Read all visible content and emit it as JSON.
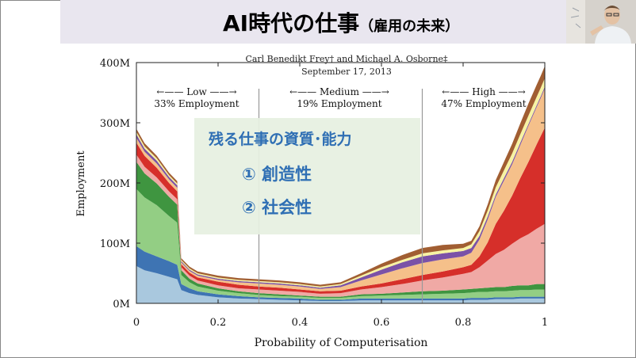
{
  "slide": {
    "title_main": "AI時代の仕事",
    "title_sub": "（雇用の未来）"
  },
  "credit": {
    "authors": "Carl Benedikt Frey† and Michael A. Osborne‡",
    "date": "September 17, 2013"
  },
  "regions": [
    {
      "label": "←—— Low ——→",
      "share": "33% Employment"
    },
    {
      "label": "←—— Medium ——→",
      "share": "19% Employment"
    },
    {
      "label": "←—— High ——→",
      "share": "47% Employment"
    }
  ],
  "overlay": {
    "title": "残る仕事の資質･能力",
    "items": [
      "①  創造性",
      "②  社会性"
    ]
  },
  "chart_data": {
    "type": "area",
    "xlabel": "Probability of Computerisation",
    "ylabel": "Employment",
    "xlim": [
      0,
      1
    ],
    "ylim": [
      0,
      400
    ],
    "x_ticks": [
      "0",
      "0.2",
      "0.4",
      "0.6",
      "0.8",
      "1"
    ],
    "y_ticks": [
      "0M",
      "100M",
      "200M",
      "300M",
      "400M"
    ],
    "region_boundaries": [
      0.3,
      0.7
    ],
    "x": [
      0,
      0.02,
      0.05,
      0.08,
      0.1,
      0.11,
      0.13,
      0.15,
      0.2,
      0.25,
      0.3,
      0.35,
      0.4,
      0.45,
      0.5,
      0.55,
      0.6,
      0.65,
      0.7,
      0.75,
      0.8,
      0.82,
      0.84,
      0.86,
      0.88,
      0.9,
      0.92,
      0.94,
      0.96,
      0.98,
      0.99,
      1.0
    ],
    "series": [
      {
        "color": "#a9c8de",
        "values": [
          62,
          55,
          50,
          44,
          40,
          22,
          17,
          14,
          10,
          8,
          7,
          6,
          5,
          4,
          4,
          5,
          5,
          5,
          5,
          5,
          5,
          6,
          6,
          6,
          7,
          7,
          7,
          8,
          8,
          8,
          8,
          8
        ]
      },
      {
        "color": "#3e74b3",
        "values": [
          33,
          31,
          28,
          26,
          24,
          10,
          8,
          6,
          5,
          4,
          3,
          3,
          3,
          2,
          2,
          3,
          3,
          3,
          3,
          3,
          3,
          3,
          3,
          3,
          3,
          3,
          3,
          3,
          3,
          3,
          3,
          3
        ]
      },
      {
        "color": "#93ce84",
        "values": [
          95,
          90,
          85,
          75,
          70,
          15,
          10,
          8,
          6,
          5,
          4,
          3,
          3,
          3,
          3,
          4,
          5,
          6,
          7,
          8,
          9,
          9,
          10,
          10,
          10,
          10,
          11,
          11,
          11,
          12,
          12,
          12
        ]
      },
      {
        "color": "#3f9540",
        "values": [
          45,
          40,
          36,
          32,
          30,
          8,
          6,
          5,
          4,
          3,
          3,
          3,
          2,
          2,
          2,
          3,
          3,
          4,
          5,
          5,
          6,
          6,
          6,
          7,
          7,
          7,
          8,
          8,
          8,
          9,
          9,
          9
        ]
      },
      {
        "color": "#f0a9a5",
        "values": [
          12,
          11,
          10,
          9,
          9,
          5,
          5,
          5,
          5,
          5,
          6,
          6,
          6,
          5,
          6,
          8,
          11,
          14,
          18,
          22,
          26,
          28,
          35,
          45,
          55,
          62,
          70,
          78,
          85,
          92,
          96,
          100
        ]
      },
      {
        "color": "#d62f2a",
        "values": [
          20,
          18,
          16,
          14,
          13,
          5,
          5,
          5,
          6,
          6,
          5,
          5,
          4,
          4,
          4,
          5,
          6,
          8,
          9,
          10,
          11,
          12,
          18,
          30,
          50,
          65,
          80,
          100,
          120,
          140,
          150,
          160
        ]
      },
      {
        "color": "#f5c08a",
        "values": [
          8,
          7,
          7,
          6,
          6,
          3,
          3,
          3,
          3,
          4,
          5,
          5,
          5,
          4,
          6,
          10,
          15,
          18,
          20,
          20,
          18,
          20,
          28,
          38,
          45,
          50,
          52,
          55,
          60,
          62,
          63,
          65
        ]
      },
      {
        "color": "#7b52a7",
        "values": [
          6,
          5,
          5,
          4,
          4,
          2,
          2,
          2,
          2,
          2,
          2,
          2,
          2,
          2,
          3,
          5,
          8,
          10,
          11,
          10,
          9,
          8,
          6,
          5,
          4,
          4,
          4,
          4,
          3,
          3,
          3,
          3
        ]
      },
      {
        "color": "#f7f3a3",
        "values": [
          4,
          4,
          4,
          3,
          3,
          2,
          2,
          2,
          2,
          2,
          2,
          2,
          2,
          2,
          2,
          3,
          4,
          4,
          5,
          5,
          5,
          6,
          8,
          10,
          12,
          13,
          14,
          14,
          14,
          14,
          14,
          14
        ]
      },
      {
        "color": "#a15e32",
        "values": [
          5,
          5,
          4,
          4,
          4,
          3,
          3,
          3,
          3,
          3,
          3,
          3,
          3,
          3,
          3,
          4,
          6,
          8,
          9,
          9,
          7,
          6,
          8,
          10,
          12,
          14,
          16,
          18,
          20,
          20,
          20,
          20
        ]
      }
    ]
  }
}
